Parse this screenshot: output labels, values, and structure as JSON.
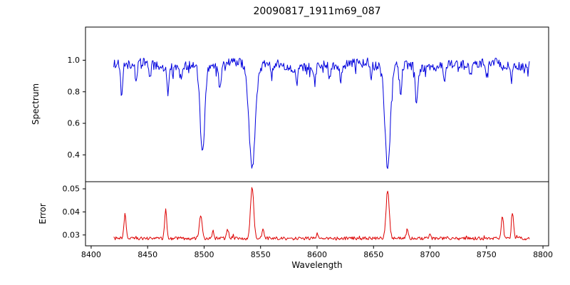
{
  "chart_data": {
    "type": "line",
    "title": "20090817_1911m69_087",
    "xlabel": "Wavelength",
    "xlim": [
      8395,
      8805
    ],
    "x_range": [
      8420,
      8788
    ],
    "xticks": [
      8400,
      8450,
      8500,
      8550,
      8600,
      8650,
      8700,
      8750,
      8800
    ],
    "xtick_labels": [
      "8400",
      "8450",
      "8500",
      "8550",
      "8600",
      "8650",
      "8700",
      "8750",
      "8800"
    ],
    "grid": false,
    "legend": "none",
    "panels": [
      {
        "name": "spectrum",
        "ylabel": "Spectrum",
        "color": "#0000dd",
        "ylim": [
          0.23,
          1.21
        ],
        "yticks": [
          0.4,
          0.6,
          0.8,
          1.0
        ],
        "ytick_labels": [
          "0.4",
          "0.6",
          "0.8",
          "1.0"
        ],
        "baseline": 0.97,
        "noise": 0.028,
        "features": [
          {
            "center": 8427,
            "amplitude": -0.22,
            "width": 0.9
          },
          {
            "center": 8440,
            "amplitude": -0.13,
            "width": 0.9
          },
          {
            "center": 8452,
            "amplitude": -0.09,
            "width": 0.8
          },
          {
            "center": 8468,
            "amplitude": -0.13,
            "width": 0.9
          },
          {
            "center": 8480,
            "amplitude": -0.08,
            "width": 0.8
          },
          {
            "center": 8498.5,
            "amplitude": -0.56,
            "width": 2.0
          },
          {
            "center": 8514,
            "amplitude": -0.15,
            "width": 1.0
          },
          {
            "center": 8542.5,
            "amplitude": -0.65,
            "width": 2.8
          },
          {
            "center": 8560,
            "amplitude": -0.08,
            "width": 0.8
          },
          {
            "center": 8582,
            "amplitude": -0.1,
            "width": 0.9
          },
          {
            "center": 8598,
            "amplitude": -0.11,
            "width": 0.9
          },
          {
            "center": 8611,
            "amplitude": -0.08,
            "width": 0.8
          },
          {
            "center": 8621,
            "amplitude": -0.09,
            "width": 0.8
          },
          {
            "center": 8648,
            "amplitude": -0.08,
            "width": 0.8
          },
          {
            "center": 8662.5,
            "amplitude": -0.64,
            "width": 2.4
          },
          {
            "center": 8674,
            "amplitude": -0.19,
            "width": 1.0
          },
          {
            "center": 8688,
            "amplitude": -0.22,
            "width": 1.1
          },
          {
            "center": 8713,
            "amplitude": -0.1,
            "width": 0.9
          },
          {
            "center": 8736,
            "amplitude": -0.08,
            "width": 0.8
          },
          {
            "center": 8750,
            "amplitude": -0.11,
            "width": 0.9
          },
          {
            "center": 8772,
            "amplitude": -0.08,
            "width": 0.8
          }
        ]
      },
      {
        "name": "error",
        "ylabel": "Error",
        "color": "#dd0000",
        "ylim": [
          0.0253,
          0.0531
        ],
        "yticks": [
          0.03,
          0.04,
          0.05
        ],
        "ytick_labels": [
          "0.03",
          "0.04",
          "0.05"
        ],
        "baseline": 0.0285,
        "noise": 0.0007,
        "features": [
          {
            "center": 8430,
            "amplitude": 0.0105,
            "width": 1.0
          },
          {
            "center": 8466,
            "amplitude": 0.0125,
            "width": 0.9
          },
          {
            "center": 8497,
            "amplitude": 0.0095,
            "width": 1.3
          },
          {
            "center": 8508,
            "amplitude": 0.003,
            "width": 0.8
          },
          {
            "center": 8521,
            "amplitude": 0.004,
            "width": 0.9
          },
          {
            "center": 8542.5,
            "amplitude": 0.0225,
            "width": 1.4
          },
          {
            "center": 8552,
            "amplitude": 0.004,
            "width": 0.9
          },
          {
            "center": 8600,
            "amplitude": 0.002,
            "width": 0.8
          },
          {
            "center": 8662.5,
            "amplitude": 0.021,
            "width": 1.4
          },
          {
            "center": 8680,
            "amplitude": 0.004,
            "width": 0.9
          },
          {
            "center": 8700,
            "amplitude": 0.002,
            "width": 0.8
          },
          {
            "center": 8764,
            "amplitude": 0.009,
            "width": 1.0
          },
          {
            "center": 8773,
            "amplitude": 0.0115,
            "width": 0.9
          }
        ]
      }
    ]
  }
}
